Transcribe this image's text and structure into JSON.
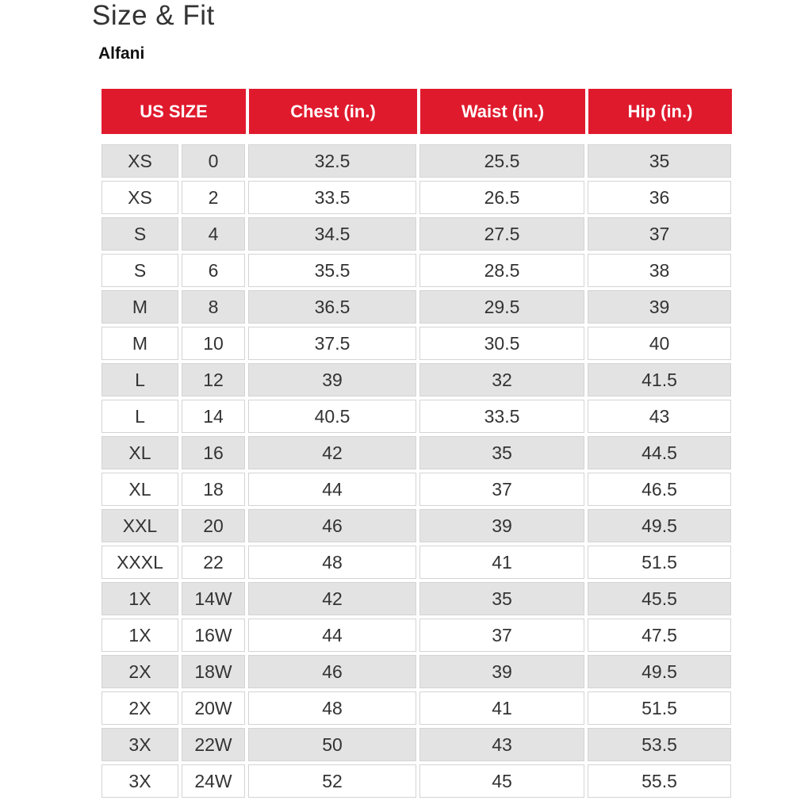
{
  "title": "Size & Fit",
  "brand": "Alfani",
  "colors": {
    "header_bg": "#e01a2d",
    "row_alt_bg": "#e3e3e3"
  },
  "headers": [
    "US SIZE",
    "Chest (in.)",
    "Waist (in.)",
    "Hip (in.)"
  ],
  "rows": [
    [
      "XS",
      "0",
      "32.5",
      "25.5",
      "35"
    ],
    [
      "XS",
      "2",
      "33.5",
      "26.5",
      "36"
    ],
    [
      "S",
      "4",
      "34.5",
      "27.5",
      "37"
    ],
    [
      "S",
      "6",
      "35.5",
      "28.5",
      "38"
    ],
    [
      "M",
      "8",
      "36.5",
      "29.5",
      "39"
    ],
    [
      "M",
      "10",
      "37.5",
      "30.5",
      "40"
    ],
    [
      "L",
      "12",
      "39",
      "32",
      "41.5"
    ],
    [
      "L",
      "14",
      "40.5",
      "33.5",
      "43"
    ],
    [
      "XL",
      "16",
      "42",
      "35",
      "44.5"
    ],
    [
      "XL",
      "18",
      "44",
      "37",
      "46.5"
    ],
    [
      "XXL",
      "20",
      "46",
      "39",
      "49.5"
    ],
    [
      "XXXL",
      "22",
      "48",
      "41",
      "51.5"
    ],
    [
      "1X",
      "14W",
      "42",
      "35",
      "45.5"
    ],
    [
      "1X",
      "16W",
      "44",
      "37",
      "47.5"
    ],
    [
      "2X",
      "18W",
      "46",
      "39",
      "49.5"
    ],
    [
      "2X",
      "20W",
      "48",
      "41",
      "51.5"
    ],
    [
      "3X",
      "22W",
      "50",
      "43",
      "53.5"
    ],
    [
      "3X",
      "24W",
      "52",
      "45",
      "55.5"
    ]
  ]
}
